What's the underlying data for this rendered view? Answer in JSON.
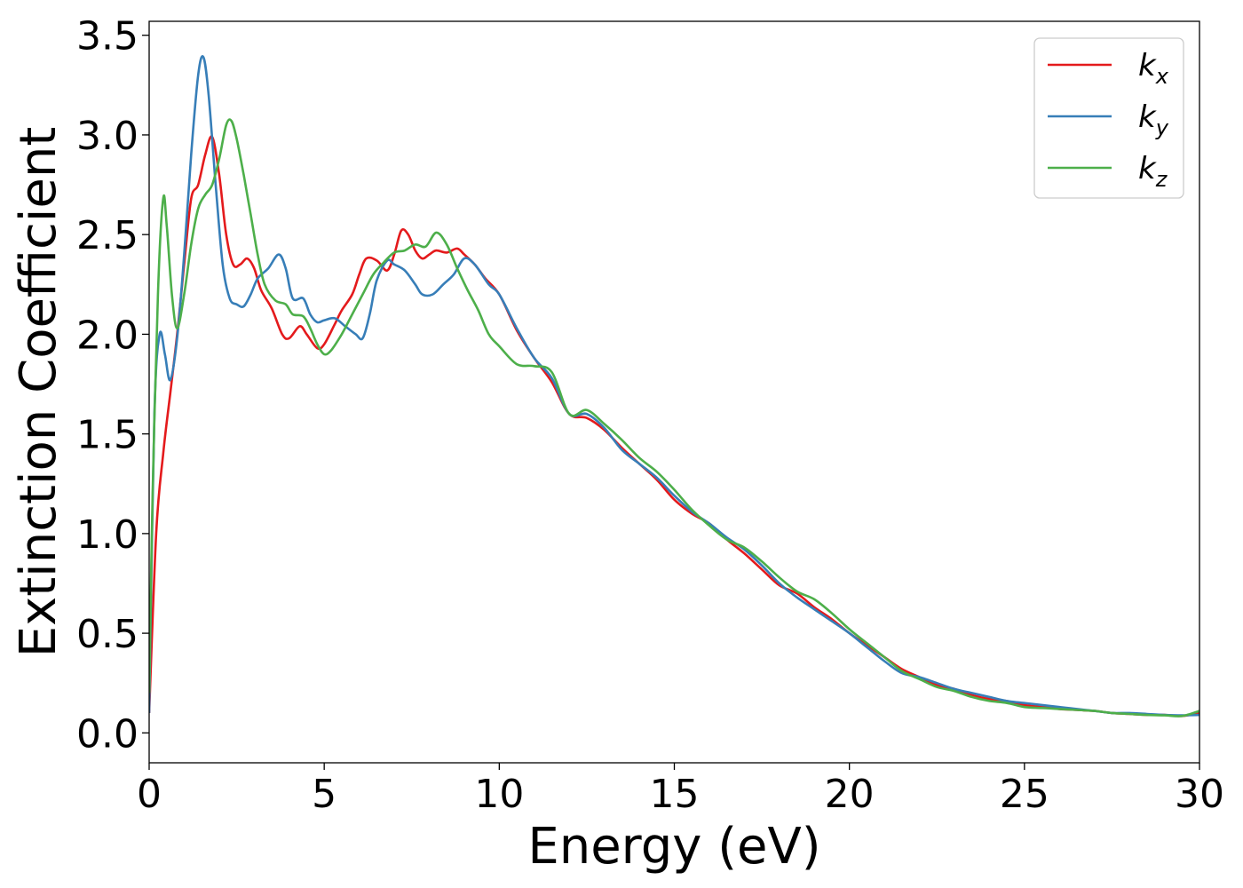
{
  "chart_data": {
    "type": "line",
    "title": "",
    "xlabel": "Energy (eV)",
    "ylabel": "Extinction Coefficient",
    "xlim": [
      0,
      30
    ],
    "ylim": [
      -0.15,
      3.57
    ],
    "x_ticks": [
      0,
      5,
      10,
      15,
      20,
      25,
      30
    ],
    "x_tick_labels": [
      "0",
      "5",
      "10",
      "15",
      "20",
      "25",
      "30"
    ],
    "y_ticks": [
      0.0,
      0.5,
      1.0,
      1.5,
      2.0,
      2.5,
      3.0,
      3.5
    ],
    "y_tick_labels": [
      "0.0",
      "0.5",
      "1.0",
      "1.5",
      "2.0",
      "2.5",
      "3.0",
      "3.5"
    ],
    "grid": false,
    "legend_position": "top-right",
    "colors": {
      "kx": "#e41a1c",
      "ky": "#377eb8",
      "kz": "#4daf4a"
    },
    "series": [
      {
        "name": "kx",
        "label_main": "k",
        "label_sub": "x",
        "color": "#e41a1c",
        "points": [
          [
            0,
            0.1
          ],
          [
            0.2,
            1.0
          ],
          [
            0.4,
            1.4
          ],
          [
            0.6,
            1.7
          ],
          [
            0.8,
            2.0
          ],
          [
            1.0,
            2.35
          ],
          [
            1.2,
            2.68
          ],
          [
            1.4,
            2.75
          ],
          [
            1.6,
            2.9
          ],
          [
            1.8,
            2.99
          ],
          [
            2.0,
            2.8
          ],
          [
            2.2,
            2.5
          ],
          [
            2.4,
            2.35
          ],
          [
            2.6,
            2.35
          ],
          [
            2.8,
            2.38
          ],
          [
            3.0,
            2.33
          ],
          [
            3.2,
            2.22
          ],
          [
            3.5,
            2.13
          ],
          [
            3.8,
            2.0
          ],
          [
            4.0,
            1.98
          ],
          [
            4.3,
            2.04
          ],
          [
            4.5,
            2.0
          ],
          [
            4.8,
            1.93
          ],
          [
            5.0,
            1.95
          ],
          [
            5.3,
            2.05
          ],
          [
            5.5,
            2.12
          ],
          [
            5.8,
            2.2
          ],
          [
            6.0,
            2.3
          ],
          [
            6.2,
            2.38
          ],
          [
            6.5,
            2.37
          ],
          [
            6.8,
            2.32
          ],
          [
            7.0,
            2.4
          ],
          [
            7.2,
            2.52
          ],
          [
            7.4,
            2.5
          ],
          [
            7.6,
            2.42
          ],
          [
            7.8,
            2.38
          ],
          [
            8.0,
            2.4
          ],
          [
            8.2,
            2.42
          ],
          [
            8.5,
            2.41
          ],
          [
            8.8,
            2.43
          ],
          [
            9.0,
            2.4
          ],
          [
            9.3,
            2.35
          ],
          [
            9.6,
            2.28
          ],
          [
            10.0,
            2.2
          ],
          [
            10.5,
            2.02
          ],
          [
            11.0,
            1.88
          ],
          [
            11.5,
            1.76
          ],
          [
            12.0,
            1.6
          ],
          [
            12.5,
            1.58
          ],
          [
            13.0,
            1.52
          ],
          [
            13.5,
            1.43
          ],
          [
            14.0,
            1.35
          ],
          [
            14.5,
            1.27
          ],
          [
            15.0,
            1.17
          ],
          [
            15.5,
            1.1
          ],
          [
            16.0,
            1.05
          ],
          [
            16.5,
            0.97
          ],
          [
            17.0,
            0.9
          ],
          [
            17.5,
            0.82
          ],
          [
            18.0,
            0.74
          ],
          [
            18.5,
            0.7
          ],
          [
            19.0,
            0.63
          ],
          [
            19.5,
            0.57
          ],
          [
            20.0,
            0.5
          ],
          [
            20.5,
            0.44
          ],
          [
            21.0,
            0.38
          ],
          [
            21.5,
            0.32
          ],
          [
            22.0,
            0.28
          ],
          [
            22.5,
            0.24
          ],
          [
            23.0,
            0.22
          ],
          [
            23.5,
            0.19
          ],
          [
            24.0,
            0.17
          ],
          [
            24.5,
            0.16
          ],
          [
            25.0,
            0.14
          ],
          [
            25.5,
            0.13
          ],
          [
            26.0,
            0.12
          ],
          [
            26.5,
            0.115
          ],
          [
            27.0,
            0.11
          ],
          [
            27.5,
            0.1
          ],
          [
            28.0,
            0.095
          ],
          [
            28.5,
            0.09
          ],
          [
            29.0,
            0.09
          ],
          [
            29.5,
            0.085
          ],
          [
            30.0,
            0.1
          ]
        ]
      },
      {
        "name": "ky",
        "label_main": "k",
        "label_sub": "y",
        "color": "#377eb8",
        "points": [
          [
            0,
            0.1
          ],
          [
            0.15,
            1.6
          ],
          [
            0.3,
            2.0
          ],
          [
            0.45,
            1.9
          ],
          [
            0.6,
            1.77
          ],
          [
            0.8,
            1.98
          ],
          [
            1.0,
            2.4
          ],
          [
            1.2,
            2.9
          ],
          [
            1.4,
            3.3
          ],
          [
            1.55,
            3.39
          ],
          [
            1.7,
            3.2
          ],
          [
            1.9,
            2.75
          ],
          [
            2.1,
            2.35
          ],
          [
            2.3,
            2.18
          ],
          [
            2.5,
            2.15
          ],
          [
            2.7,
            2.14
          ],
          [
            2.9,
            2.2
          ],
          [
            3.1,
            2.28
          ],
          [
            3.4,
            2.33
          ],
          [
            3.7,
            2.4
          ],
          [
            3.9,
            2.33
          ],
          [
            4.1,
            2.18
          ],
          [
            4.4,
            2.18
          ],
          [
            4.6,
            2.1
          ],
          [
            4.8,
            2.06
          ],
          [
            5.0,
            2.07
          ],
          [
            5.3,
            2.08
          ],
          [
            5.6,
            2.04
          ],
          [
            5.9,
            2.0
          ],
          [
            6.1,
            1.98
          ],
          [
            6.3,
            2.1
          ],
          [
            6.5,
            2.27
          ],
          [
            6.8,
            2.37
          ],
          [
            7.0,
            2.35
          ],
          [
            7.3,
            2.32
          ],
          [
            7.6,
            2.25
          ],
          [
            7.8,
            2.2
          ],
          [
            8.1,
            2.2
          ],
          [
            8.4,
            2.25
          ],
          [
            8.7,
            2.3
          ],
          [
            9.0,
            2.38
          ],
          [
            9.3,
            2.35
          ],
          [
            9.7,
            2.25
          ],
          [
            10.0,
            2.2
          ],
          [
            10.5,
            2.03
          ],
          [
            11.0,
            1.88
          ],
          [
            11.5,
            1.78
          ],
          [
            12.0,
            1.6
          ],
          [
            12.5,
            1.6
          ],
          [
            13.0,
            1.53
          ],
          [
            13.5,
            1.42
          ],
          [
            14.0,
            1.35
          ],
          [
            14.5,
            1.28
          ],
          [
            15.0,
            1.19
          ],
          [
            15.5,
            1.11
          ],
          [
            16.0,
            1.05
          ],
          [
            16.5,
            0.98
          ],
          [
            17.0,
            0.92
          ],
          [
            17.5,
            0.84
          ],
          [
            18.0,
            0.75
          ],
          [
            18.5,
            0.68
          ],
          [
            19.0,
            0.62
          ],
          [
            19.5,
            0.56
          ],
          [
            20.0,
            0.5
          ],
          [
            20.5,
            0.43
          ],
          [
            21.0,
            0.36
          ],
          [
            21.5,
            0.3
          ],
          [
            22.0,
            0.28
          ],
          [
            22.5,
            0.25
          ],
          [
            23.0,
            0.22
          ],
          [
            23.5,
            0.2
          ],
          [
            24.0,
            0.18
          ],
          [
            24.5,
            0.16
          ],
          [
            25.0,
            0.15
          ],
          [
            25.5,
            0.14
          ],
          [
            26.0,
            0.13
          ],
          [
            26.5,
            0.12
          ],
          [
            27.0,
            0.11
          ],
          [
            27.5,
            0.1
          ],
          [
            28.0,
            0.1
          ],
          [
            28.5,
            0.095
          ],
          [
            29.0,
            0.09
          ],
          [
            29.5,
            0.088
          ],
          [
            30.0,
            0.09
          ]
        ]
      },
      {
        "name": "kz",
        "label_main": "k",
        "label_sub": "z",
        "color": "#4daf4a",
        "points": [
          [
            0,
            0.2
          ],
          [
            0.1,
            1.2
          ],
          [
            0.25,
            2.2
          ],
          [
            0.4,
            2.68
          ],
          [
            0.5,
            2.55
          ],
          [
            0.65,
            2.2
          ],
          [
            0.8,
            2.03
          ],
          [
            1.0,
            2.2
          ],
          [
            1.2,
            2.45
          ],
          [
            1.4,
            2.63
          ],
          [
            1.6,
            2.7
          ],
          [
            1.8,
            2.75
          ],
          [
            2.0,
            2.88
          ],
          [
            2.2,
            3.05
          ],
          [
            2.35,
            3.07
          ],
          [
            2.5,
            2.98
          ],
          [
            2.7,
            2.8
          ],
          [
            2.9,
            2.6
          ],
          [
            3.1,
            2.4
          ],
          [
            3.3,
            2.25
          ],
          [
            3.6,
            2.17
          ],
          [
            3.9,
            2.15
          ],
          [
            4.1,
            2.1
          ],
          [
            4.4,
            2.09
          ],
          [
            4.6,
            2.03
          ],
          [
            4.8,
            1.95
          ],
          [
            5.0,
            1.9
          ],
          [
            5.2,
            1.92
          ],
          [
            5.5,
            2.0
          ],
          [
            5.8,
            2.1
          ],
          [
            6.1,
            2.2
          ],
          [
            6.4,
            2.3
          ],
          [
            6.7,
            2.36
          ],
          [
            7.0,
            2.41
          ],
          [
            7.3,
            2.42
          ],
          [
            7.6,
            2.45
          ],
          [
            7.9,
            2.44
          ],
          [
            8.2,
            2.51
          ],
          [
            8.5,
            2.45
          ],
          [
            8.8,
            2.33
          ],
          [
            9.1,
            2.22
          ],
          [
            9.4,
            2.12
          ],
          [
            9.7,
            2.0
          ],
          [
            10.0,
            1.94
          ],
          [
            10.5,
            1.85
          ],
          [
            11.0,
            1.84
          ],
          [
            11.5,
            1.81
          ],
          [
            12.0,
            1.6
          ],
          [
            12.5,
            1.62
          ],
          [
            13.0,
            1.55
          ],
          [
            13.5,
            1.47
          ],
          [
            14.0,
            1.38
          ],
          [
            14.5,
            1.31
          ],
          [
            15.0,
            1.22
          ],
          [
            15.5,
            1.12
          ],
          [
            16.0,
            1.04
          ],
          [
            16.5,
            0.97
          ],
          [
            17.0,
            0.93
          ],
          [
            17.5,
            0.86
          ],
          [
            18.0,
            0.78
          ],
          [
            18.5,
            0.71
          ],
          [
            19.0,
            0.67
          ],
          [
            19.5,
            0.6
          ],
          [
            20.0,
            0.52
          ],
          [
            20.5,
            0.45
          ],
          [
            21.0,
            0.38
          ],
          [
            21.5,
            0.31
          ],
          [
            22.0,
            0.27
          ],
          [
            22.5,
            0.23
          ],
          [
            23.0,
            0.21
          ],
          [
            23.5,
            0.18
          ],
          [
            24.0,
            0.16
          ],
          [
            24.5,
            0.15
          ],
          [
            25.0,
            0.13
          ],
          [
            25.5,
            0.125
          ],
          [
            26.0,
            0.12
          ],
          [
            26.5,
            0.115
          ],
          [
            27.0,
            0.11
          ],
          [
            27.5,
            0.1
          ],
          [
            28.0,
            0.095
          ],
          [
            28.5,
            0.09
          ],
          [
            29.0,
            0.088
          ],
          [
            29.5,
            0.085
          ],
          [
            30.0,
            0.11
          ]
        ]
      }
    ]
  }
}
